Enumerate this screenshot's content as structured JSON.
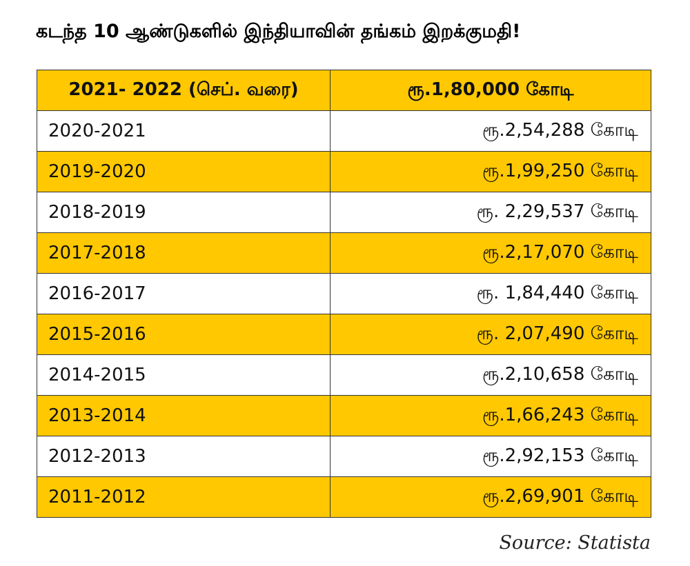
{
  "title": "கடந்த 10 ஆண்டுகளில் இந்தியாவின் தங்கம் இறக்குமதி!",
  "table": {
    "header": {
      "period": "2021- 2022 (செப். வரை)",
      "amount": "ரூ.1,80,000 கோடி"
    },
    "rows": [
      {
        "period": "2020-2021",
        "amount": "ரூ.2,54,288 கோடி"
      },
      {
        "period": "2019-2020",
        "amount": "ரூ.1,99,250 கோடி"
      },
      {
        "period": "2018-2019",
        "amount": "ரூ. 2,29,537 கோடி"
      },
      {
        "period": "2017-2018",
        "amount": "ரூ.2,17,070 கோடி"
      },
      {
        "period": "2016-2017",
        "amount": "ரூ. 1,84,440 கோடி"
      },
      {
        "period": "2015-2016",
        "amount": "ரூ. 2,07,490 கோடி"
      },
      {
        "period": "2014-2015",
        "amount": "ரூ.2,10,658 கோடி"
      },
      {
        "period": "2013-2014",
        "amount": "ரூ.1,66,243 கோடி"
      },
      {
        "period": "2012-2013",
        "amount": "ரூ.2,92,153 கோடி"
      },
      {
        "period": "2011-2012",
        "amount": "ரூ.2,69,901 கோடி"
      }
    ]
  },
  "source": "Source: Statista",
  "colors": {
    "highlight": "#FFC800",
    "plain": "#FFFFFF",
    "border": "#333333"
  }
}
